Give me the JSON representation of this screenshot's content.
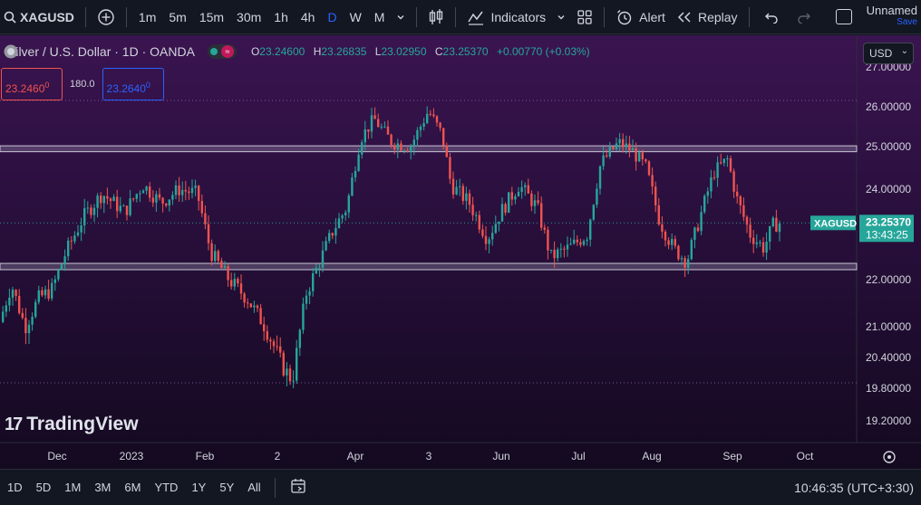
{
  "topbar": {
    "symbol": "XAGUSD",
    "timeframes": [
      "1m",
      "5m",
      "15m",
      "30m",
      "1h",
      "4h",
      "D",
      "W",
      "M"
    ],
    "active_timeframe": "D",
    "indicators_label": "Indicators",
    "alert_label": "Alert",
    "replay_label": "Replay",
    "layout_name": "Unnamed",
    "save_label": "Save"
  },
  "legend": {
    "title": "Silver / U.S. Dollar · 1D · OANDA",
    "o_key": "O",
    "o_val": "23.24600",
    "h_key": "H",
    "h_val": "23.26835",
    "l_key": "L",
    "l_val": "23.02950",
    "c_key": "C",
    "c_val": "23.25370",
    "change": "+0.00770 (+0.03%)"
  },
  "trade": {
    "sell_price": "23.2460",
    "sell_sup": "0",
    "spread": "180.0",
    "buy_price": "23.2640",
    "buy_sup": "0"
  },
  "currency": "USD",
  "chart_data": {
    "type": "candlestick",
    "price_axis_labels": [
      "27.00000",
      "26.00000",
      "25.00000",
      "24.00000",
      "22.00000",
      "21.00000",
      "20.40000",
      "19.80000",
      "19.20000"
    ],
    "time_axis_labels": [
      "Dec",
      "2023",
      "Feb",
      "2",
      "Apr",
      "3",
      "Jun",
      "Jul",
      "Aug",
      "Sep",
      "Oct"
    ],
    "last_symbol": "XAGUSD",
    "last_price": "23.25370",
    "countdown": "13:43:25",
    "horizontal_zones": [
      [
        24.88,
        25.02
      ],
      [
        22.22,
        22.36
      ]
    ],
    "colors": {
      "up": "#26a69a",
      "down": "#ef5350",
      "tag": "#26a69a"
    }
  },
  "brand": "TradingView",
  "bottombar": {
    "ranges": [
      "1D",
      "5D",
      "1M",
      "3M",
      "6M",
      "YTD",
      "1Y",
      "5Y",
      "All"
    ],
    "clock": "10:46:35 (UTC+3:30)"
  }
}
